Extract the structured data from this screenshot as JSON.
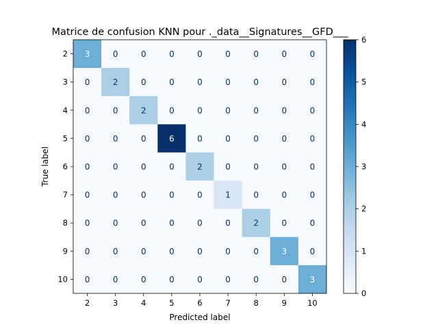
{
  "chart_data": {
    "type": "heatmap",
    "title": "Matrice de confusion KNN pour ._data__Signatures__GFD___",
    "xlabel": "Predicted label",
    "ylabel": "True label",
    "x_categories": [
      "2",
      "3",
      "4",
      "5",
      "6",
      "7",
      "8",
      "9",
      "10"
    ],
    "y_categories": [
      "2",
      "3",
      "4",
      "5",
      "6",
      "7",
      "8",
      "9",
      "10"
    ],
    "values": [
      [
        3,
        0,
        0,
        0,
        0,
        0,
        0,
        0,
        0
      ],
      [
        0,
        2,
        0,
        0,
        0,
        0,
        0,
        0,
        0
      ],
      [
        0,
        0,
        2,
        0,
        0,
        0,
        0,
        0,
        0
      ],
      [
        0,
        0,
        0,
        6,
        0,
        0,
        0,
        0,
        0
      ],
      [
        0,
        0,
        0,
        0,
        2,
        0,
        0,
        0,
        0
      ],
      [
        0,
        0,
        0,
        0,
        0,
        1,
        0,
        0,
        0
      ],
      [
        0,
        0,
        0,
        0,
        0,
        0,
        2,
        0,
        0
      ],
      [
        0,
        0,
        0,
        0,
        0,
        0,
        0,
        3,
        0
      ],
      [
        0,
        0,
        0,
        0,
        0,
        0,
        0,
        0,
        3
      ]
    ],
    "colorbar": {
      "range": [
        0,
        6
      ],
      "ticks": [
        "0",
        "1",
        "2",
        "3",
        "4",
        "5",
        "6"
      ]
    },
    "colormap": "Blues",
    "low_color": "#f7fbff",
    "high_color": "#08306b",
    "grid": false
  }
}
